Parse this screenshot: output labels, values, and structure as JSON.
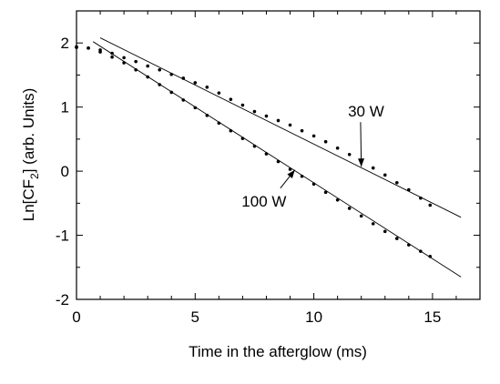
{
  "chart_data": {
    "type": "scatter",
    "title": "",
    "xlabel": "Time in the afterglow (ms)",
    "ylabel_parts": [
      "Ln[CF",
      "2",
      "] (arb. Units)"
    ],
    "xlim": [
      0,
      17
    ],
    "ylim": [
      -2,
      2.5
    ],
    "xticks": [
      0,
      5,
      10,
      15
    ],
    "xtick_labels": [
      "0",
      "5",
      "10",
      "15"
    ],
    "yticks": [
      -2,
      -1,
      0,
      1,
      2
    ],
    "ytick_labels": [
      "-2",
      "-1",
      "0",
      "1",
      "2"
    ],
    "grid": false,
    "series": [
      {
        "name": "30 W",
        "points": [
          [
            0.0,
            1.93
          ],
          [
            0.5,
            1.92
          ],
          [
            1.0,
            1.89
          ],
          [
            1.5,
            1.84
          ],
          [
            2.0,
            1.77
          ],
          [
            2.5,
            1.71
          ],
          [
            3.0,
            1.64
          ],
          [
            3.5,
            1.58
          ],
          [
            4.0,
            1.51
          ],
          [
            4.5,
            1.45
          ],
          [
            5.0,
            1.38
          ],
          [
            5.5,
            1.31
          ],
          [
            6.0,
            1.22
          ],
          [
            6.5,
            1.12
          ],
          [
            7.0,
            1.03
          ],
          [
            7.5,
            0.93
          ],
          [
            8.0,
            0.86
          ],
          [
            8.5,
            0.79
          ],
          [
            9.0,
            0.72
          ],
          [
            9.5,
            0.63
          ],
          [
            10.0,
            0.55
          ],
          [
            10.5,
            0.46
          ],
          [
            11.0,
            0.36
          ],
          [
            11.5,
            0.26
          ],
          [
            12.0,
            0.15
          ],
          [
            12.5,
            0.05
          ],
          [
            13.0,
            -0.06
          ],
          [
            13.5,
            -0.18
          ],
          [
            14.0,
            -0.29
          ],
          [
            14.5,
            -0.42
          ],
          [
            14.9,
            -0.53
          ]
        ],
        "fit": [
          [
            1.0,
            2.08
          ],
          [
            16.2,
            -0.72
          ]
        ]
      },
      {
        "name": "100 W",
        "points": [
          [
            0.0,
            1.94
          ],
          [
            0.5,
            1.92
          ],
          [
            1.0,
            1.86
          ],
          [
            1.5,
            1.78
          ],
          [
            2.0,
            1.69
          ],
          [
            2.5,
            1.58
          ],
          [
            3.0,
            1.47
          ],
          [
            3.5,
            1.35
          ],
          [
            4.0,
            1.23
          ],
          [
            4.5,
            1.11
          ],
          [
            5.0,
            0.99
          ],
          [
            5.5,
            0.87
          ],
          [
            6.0,
            0.75
          ],
          [
            6.5,
            0.63
          ],
          [
            7.0,
            0.51
          ],
          [
            7.5,
            0.39
          ],
          [
            8.0,
            0.27
          ],
          [
            8.5,
            0.15
          ],
          [
            9.0,
            0.03
          ],
          [
            9.5,
            -0.08
          ],
          [
            10.0,
            -0.2
          ],
          [
            10.5,
            -0.33
          ],
          [
            11.0,
            -0.45
          ],
          [
            11.5,
            -0.58
          ],
          [
            12.0,
            -0.7
          ],
          [
            12.5,
            -0.82
          ],
          [
            13.0,
            -0.94
          ],
          [
            13.5,
            -1.05
          ],
          [
            14.0,
            -1.15
          ],
          [
            14.5,
            -1.25
          ],
          [
            14.9,
            -1.33
          ]
        ],
        "fit": [
          [
            0.7,
            2.02
          ],
          [
            16.2,
            -1.65
          ]
        ]
      }
    ],
    "annotations": [
      {
        "text": "30 W",
        "x": 12.2,
        "y": 0.85,
        "arrow_to": [
          12.0,
          0.07
        ]
      },
      {
        "text": "100 W",
        "x": 7.9,
        "y": -0.55,
        "arrow_to": [
          9.2,
          0.02
        ]
      }
    ]
  }
}
